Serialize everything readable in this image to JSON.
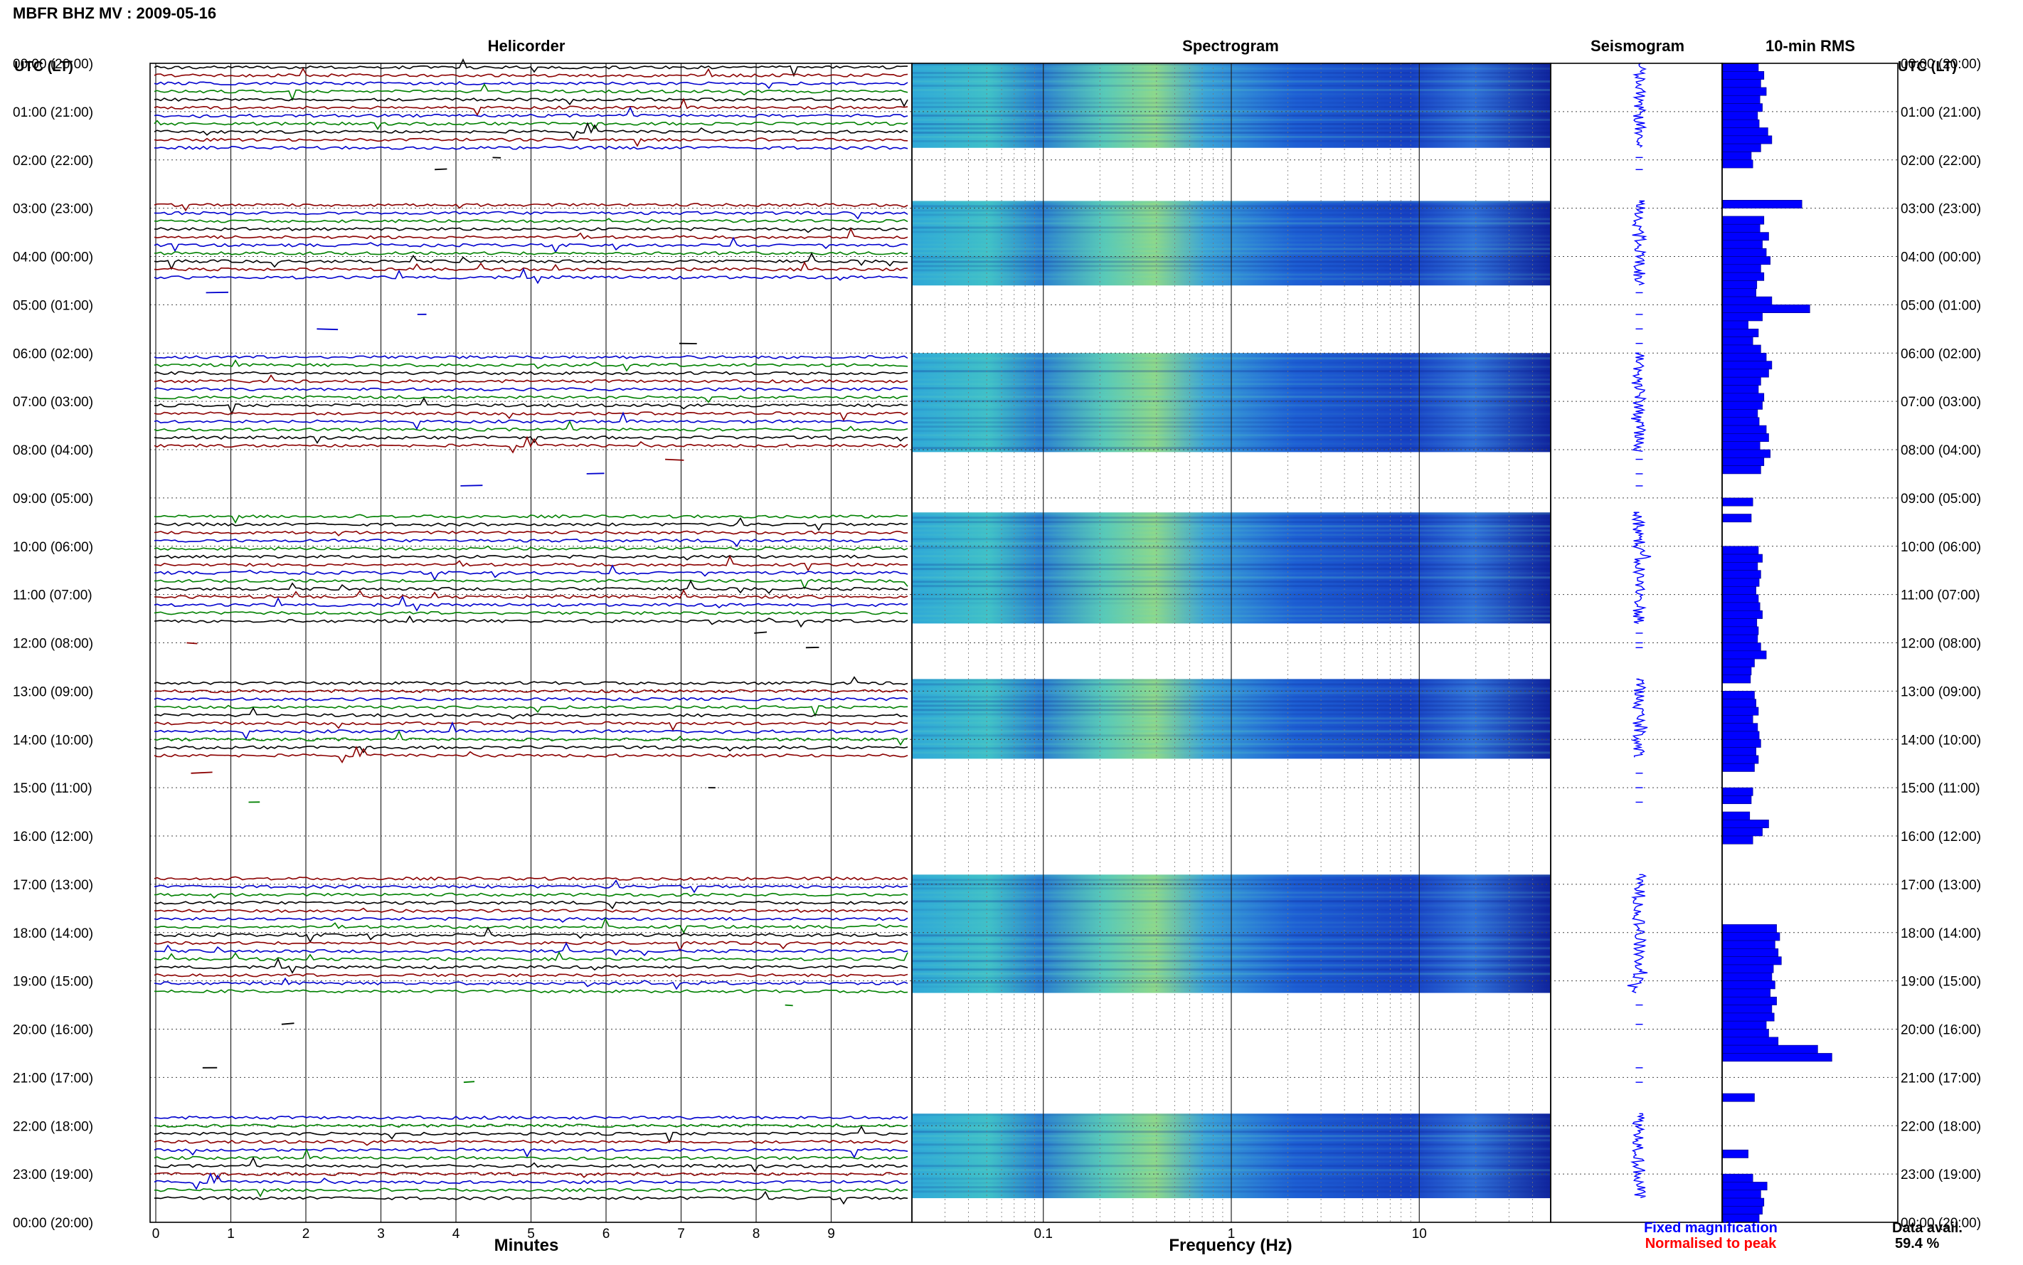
{
  "title": "MBFR BHZ MV : 2009-05-16",
  "legend": {
    "fixed": "Fixed magnification",
    "fixed_color": "#0000ff",
    "normalised": "Normalised to peak",
    "normalised_color": "#ff0000"
  },
  "data_avail": {
    "label": "Data avail.",
    "value": "59.4 %"
  },
  "chart_data": {
    "type": "heatmap",
    "title": "MBFR BHZ MV : 2009-05-16",
    "time_axis_label": "UTC (LT)",
    "time_ticks": [
      "00:00 (20:00)",
      "01:00 (21:00)",
      "02:00 (22:00)",
      "03:00 (23:00)",
      "04:00 (00:00)",
      "05:00 (01:00)",
      "06:00 (02:00)",
      "07:00 (03:00)",
      "08:00 (04:00)",
      "09:00 (05:00)",
      "10:00 (06:00)",
      "11:00 (07:00)",
      "12:00 (08:00)",
      "13:00 (09:00)",
      "14:00 (10:00)",
      "15:00 (11:00)",
      "16:00 (12:00)",
      "17:00 (13:00)",
      "18:00 (14:00)",
      "19:00 (15:00)",
      "20:00 (16:00)",
      "21:00 (17:00)",
      "22:00 (18:00)",
      "23:00 (19:00)",
      "00:00 (20:00)"
    ],
    "trace_colors": [
      "#000000",
      "#8b0000",
      "#0000cd",
      "#008000"
    ],
    "data_blocks_hours": [
      [
        0,
        1.75
      ],
      [
        2.85,
        4.6
      ],
      [
        6,
        8.05
      ],
      [
        9.3,
        11.6
      ],
      [
        12.75,
        14.4
      ],
      [
        16.8,
        19.25
      ],
      [
        21.75,
        23.5
      ]
    ],
    "panels": [
      {
        "name": "Helicorder",
        "xlabel": "Minutes",
        "x_ticks": [
          "0",
          "1",
          "2",
          "3",
          "4",
          "5",
          "6",
          "7",
          "8",
          "9"
        ],
        "xlim": [
          0,
          10
        ]
      },
      {
        "name": "Spectrogram",
        "xlabel": "Frequency (Hz)",
        "x_ticks": [
          "0.1",
          "1",
          "10"
        ],
        "xscale": "log",
        "xlim": [
          0.02,
          50
        ]
      },
      {
        "name": "Seismogram"
      },
      {
        "name": "10-min RMS"
      }
    ],
    "rms_10min": [
      [
        0.45,
        0.52,
        0.48,
        0.55,
        0.47,
        0.5
      ],
      [
        0.44,
        0.46,
        0.57,
        0.62,
        0.48,
        0.36
      ],
      [
        0.38,
        0,
        0,
        0,
        0,
        1.0
      ],
      [
        0,
        0.52,
        0.47,
        0.58,
        0.5,
        0.55
      ],
      [
        0.6,
        0.48,
        0.52,
        0.43,
        0.42,
        0.62
      ],
      [
        1.1,
        0.5,
        0.32,
        0.45,
        0.38,
        0.48
      ],
      [
        0.55,
        0.62,
        0.58,
        0.48,
        0.45,
        0.52
      ],
      [
        0.5,
        0.44,
        0.46,
        0.55,
        0.58,
        0.47
      ],
      [
        0.6,
        0.52,
        0.48,
        0,
        0,
        0
      ],
      [
        0.38,
        0,
        0.36,
        0,
        0,
        0
      ],
      [
        0.45,
        0.5,
        0.44,
        0.48,
        0.46,
        0.42
      ],
      [
        0.45,
        0.47,
        0.5,
        0.43,
        0.45,
        0.44
      ],
      [
        0.48,
        0.55,
        0.4,
        0.36,
        0.35,
        0
      ],
      [
        0.4,
        0.42,
        0.45,
        0.38,
        0.44,
        0.46
      ],
      [
        0.48,
        0.42,
        0.45,
        0.4,
        0,
        0
      ],
      [
        0.38,
        0.36,
        0,
        0.34,
        0.58,
        0.5
      ],
      [
        0.38,
        0,
        0,
        0,
        0,
        0
      ],
      [
        0,
        0,
        0,
        0,
        0,
        0.68
      ],
      [
        0.72,
        0.66,
        0.7,
        0.74,
        0.64,
        0.62
      ],
      [
        0.66,
        0.6,
        0.68,
        0.62,
        0.65,
        0.55
      ],
      [
        0.58,
        0.7,
        1.2,
        1.38,
        0,
        0
      ],
      [
        0,
        0,
        0.4,
        0,
        0,
        0
      ],
      [
        0,
        0,
        0,
        0.32,
        0,
        0
      ],
      [
        0.38,
        0.56,
        0.48,
        0.52,
        0.5,
        0.46
      ]
    ]
  }
}
